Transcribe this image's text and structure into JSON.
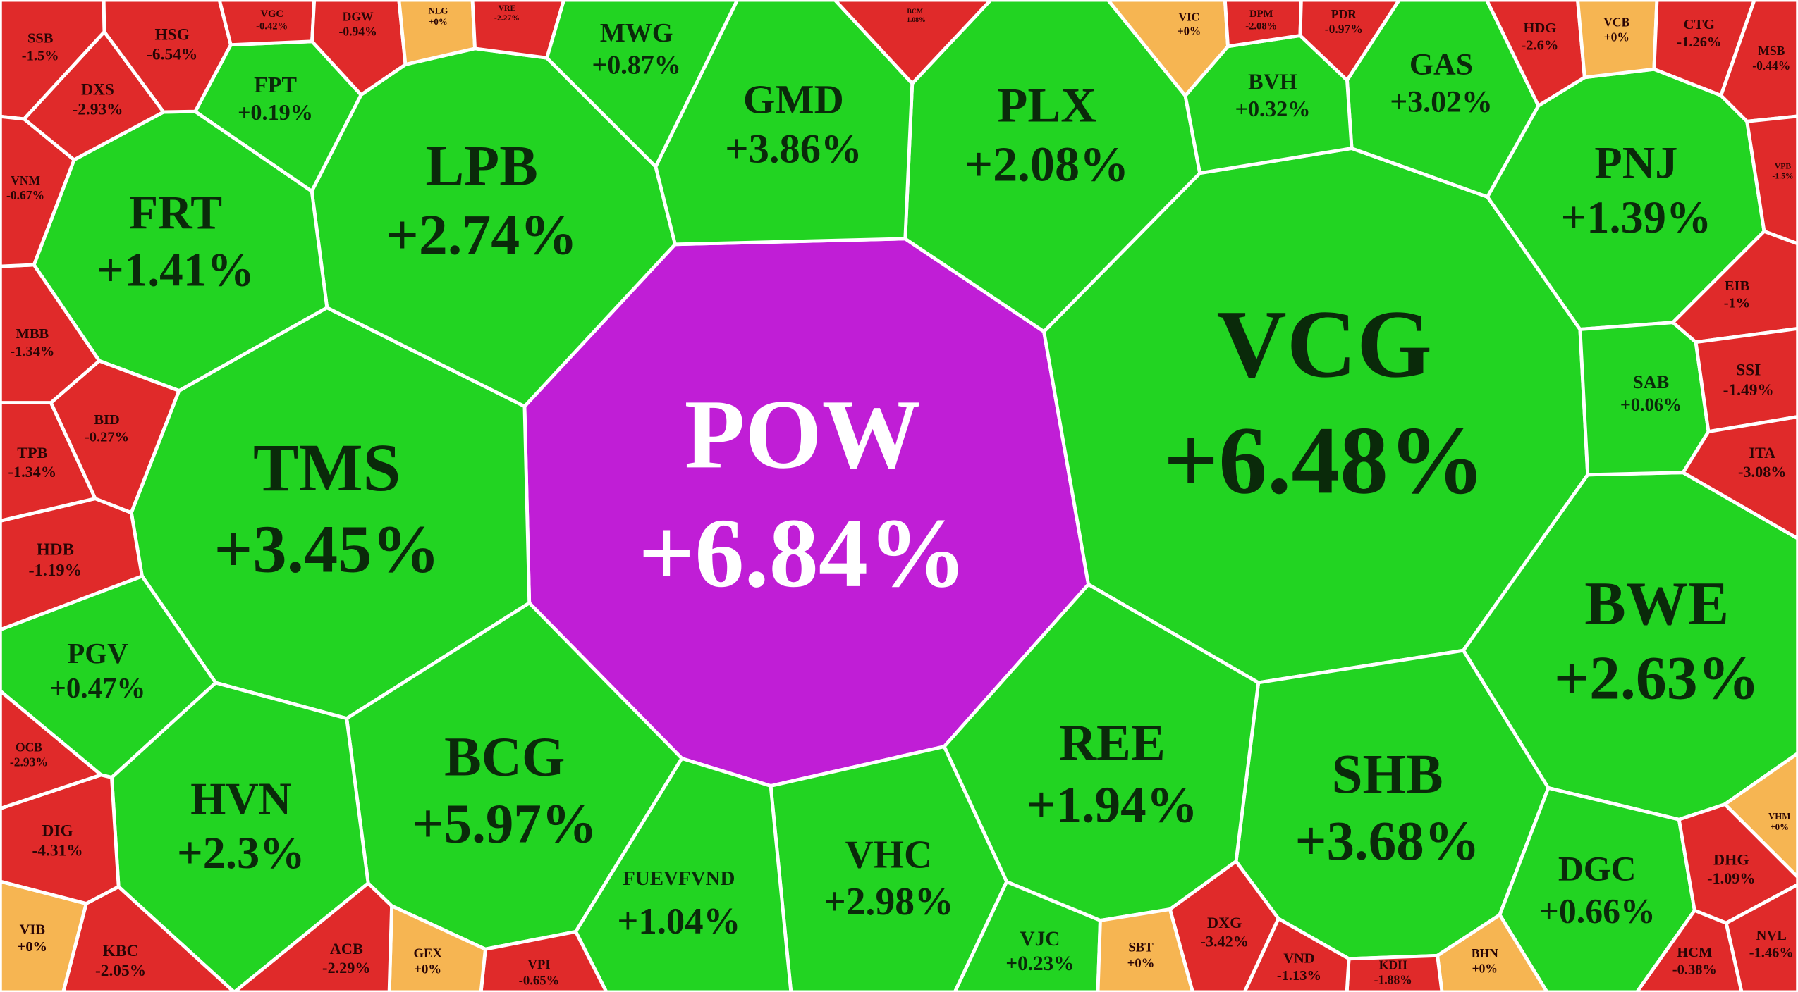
{
  "chart_data": {
    "type": "voronoi",
    "categories": [
      "POW",
      "VCG",
      "TMS",
      "BWE",
      "LPB",
      "SHB",
      "REE",
      "BCG",
      "FRT",
      "HVN",
      "PLX",
      "GMD",
      "PNJ",
      "VHC",
      "FUEVFVND",
      "GAS",
      "DGC",
      "PGV",
      "MWG",
      "FPT",
      "BVH",
      "SAB",
      "VJC",
      "SSB",
      "HSG",
      "VGC",
      "DGW",
      "NLG",
      "VRE",
      "BCM",
      "VIC",
      "DPM",
      "PDR",
      "HDG",
      "VCB",
      "CTG",
      "MSB",
      "VPB",
      "EIB",
      "SSI",
      "ITA",
      "VHM",
      "DHG",
      "NVL",
      "HCM",
      "BHN",
      "KDH",
      "VND",
      "DXG",
      "SBT",
      "VPI",
      "GEX",
      "ACB",
      "KBC",
      "VIB",
      "DIG",
      "OCB",
      "HDB",
      "TPB",
      "BID",
      "MBB",
      "VNM",
      "DXS"
    ],
    "values": [
      6.84,
      6.48,
      3.45,
      2.63,
      2.74,
      3.68,
      1.94,
      5.97,
      1.41,
      2.3,
      2.08,
      3.86,
      1.39,
      2.98,
      1.04,
      3.02,
      0.66,
      0.47,
      0.87,
      0.19,
      0.32,
      0.06,
      0.23,
      -1.5,
      -6.54,
      -0.42,
      -0.94,
      0,
      -2.27,
      -1.08,
      0,
      -2.08,
      -0.97,
      -2.6,
      0,
      -1.26,
      -0.44,
      -1.5,
      -1,
      -1.49,
      -3.08,
      0,
      -1.09,
      -1.46,
      -0.38,
      0,
      -1.88,
      -1.13,
      -3.42,
      0,
      -0.65,
      0,
      -2.29,
      -2.05,
      0,
      -4.31,
      -2.93,
      -1.19,
      -1.34,
      -0.27,
      -1.34,
      -0.67,
      -2.93
    ],
    "value_labels": [
      "+6.84%",
      "+6.48%",
      "+3.45%",
      "+2.63%",
      "+2.74%",
      "+3.68%",
      "+1.94%",
      "+5.97%",
      "+1.41%",
      "+2.3%",
      "+2.08%",
      "+3.86%",
      "+1.39%",
      "+2.98%",
      "+1.04%",
      "+3.02%",
      "+0.66%",
      "+0.47%",
      "+0.87%",
      "+0.19%",
      "+0.32%",
      "+0.06%",
      "+0.23%",
      "-1.5%",
      "-6.54%",
      "-0.42%",
      "-0.94%",
      "+0%",
      "-2.27%",
      "-1.08%",
      "+0%",
      "-2.08%",
      "-0.97%",
      "-2.6%",
      "+0%",
      "-1.26%",
      "-0.44%",
      "-1.5%",
      "-1%",
      "-1.49%",
      "-3.08%",
      "+0%",
      "-1.09%",
      "-1.46%",
      "-0.38%",
      "+0%",
      "-1.88%",
      "-1.13%",
      "-3.42%",
      "+0%",
      "-0.65%",
      "+0%",
      "-2.29%",
      "-2.05%",
      "+0%",
      "-4.31%",
      "-2.93%",
      "-1.19%",
      "-1.34%",
      "-0.27%",
      "-1.34%",
      "-0.67%",
      "-2.93%"
    ],
    "colors": [
      "#c01ed6",
      "#22d422",
      "#22d422",
      "#22d422",
      "#22d422",
      "#22d422",
      "#22d422",
      "#22d422",
      "#22d422",
      "#22d422",
      "#22d422",
      "#22d422",
      "#22d422",
      "#22d422",
      "#22d422",
      "#22d422",
      "#22d422",
      "#22d422",
      "#22d422",
      "#22d422",
      "#22d422",
      "#22d422",
      "#22d422",
      "#e02a2a",
      "#e02a2a",
      "#e02a2a",
      "#e02a2a",
      "#f6b552",
      "#e02a2a",
      "#e02a2a",
      "#f6b552",
      "#e02a2a",
      "#e02a2a",
      "#e02a2a",
      "#f6b552",
      "#e02a2a",
      "#e02a2a",
      "#e02a2a",
      "#e02a2a",
      "#e02a2a",
      "#e02a2a",
      "#f6b552",
      "#e02a2a",
      "#e02a2a",
      "#e02a2a",
      "#f6b552",
      "#e02a2a",
      "#e02a2a",
      "#e02a2a",
      "#f6b552",
      "#e02a2a",
      "#f6b552",
      "#e02a2a",
      "#e02a2a",
      "#f6b552",
      "#e02a2a",
      "#e02a2a",
      "#e02a2a",
      "#e02a2a",
      "#e02a2a",
      "#e02a2a",
      "#e02a2a",
      "#e02a2a"
    ]
  }
}
